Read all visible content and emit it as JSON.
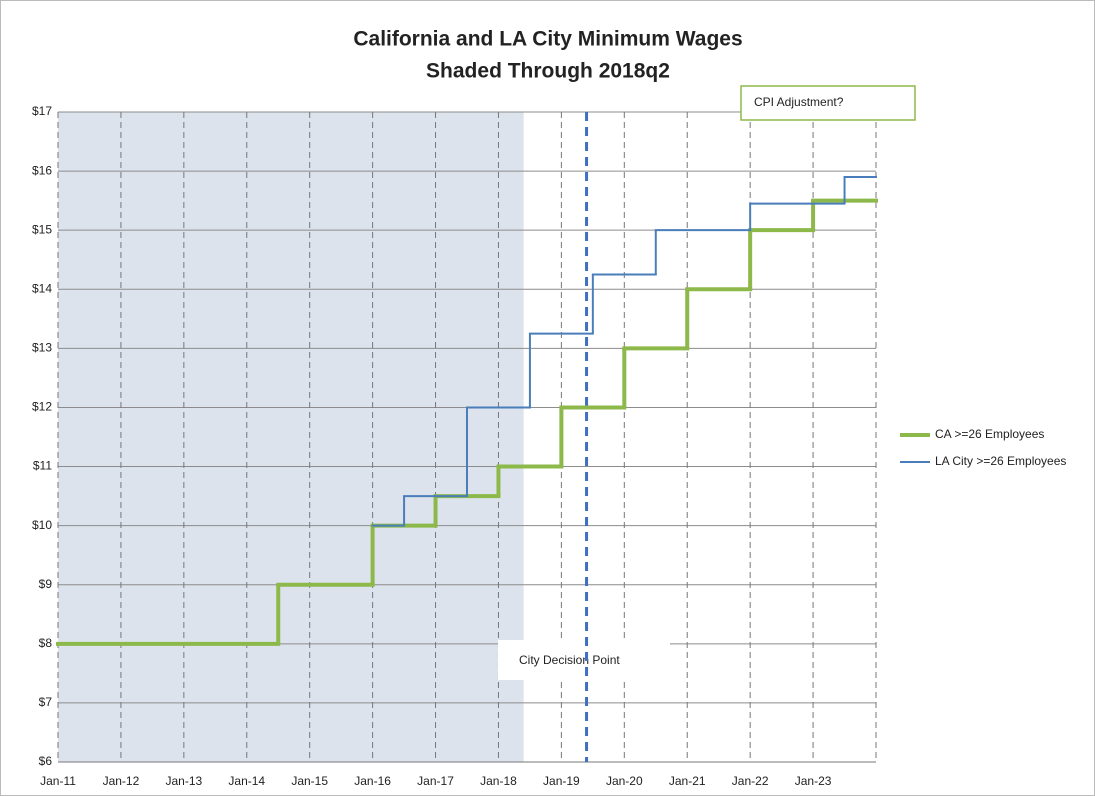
{
  "chart_data": {
    "type": "step",
    "title": "California and LA City Minimum Wages",
    "subtitle": "Shaded Through 2018q2",
    "xlim": [
      2011,
      2024
    ],
    "xticks": [
      {
        "value": 2011,
        "label": "Jan-11"
      },
      {
        "value": 2012,
        "label": "Jan-12"
      },
      {
        "value": 2013,
        "label": "Jan-13"
      },
      {
        "value": 2014,
        "label": "Jan-14"
      },
      {
        "value": 2015,
        "label": "Jan-15"
      },
      {
        "value": 2016,
        "label": "Jan-16"
      },
      {
        "value": 2017,
        "label": "Jan-17"
      },
      {
        "value": 2018,
        "label": "Jan-18"
      },
      {
        "value": 2019,
        "label": "Jan-19"
      },
      {
        "value": 2020,
        "label": "Jan-20"
      },
      {
        "value": 2021,
        "label": "Jan-21"
      },
      {
        "value": 2022,
        "label": "Jan-22"
      },
      {
        "value": 2023,
        "label": "Jan-23"
      }
    ],
    "ylim": [
      6,
      17
    ],
    "yticks": [
      {
        "value": 6,
        "label": "$6"
      },
      {
        "value": 7,
        "label": "$7"
      },
      {
        "value": 8,
        "label": "$8"
      },
      {
        "value": 9,
        "label": "$9"
      },
      {
        "value": 10,
        "label": "$10"
      },
      {
        "value": 11,
        "label": "$11"
      },
      {
        "value": 12,
        "label": "$12"
      },
      {
        "value": 13,
        "label": "$13"
      },
      {
        "value": 14,
        "label": "$14"
      },
      {
        "value": 15,
        "label": "$15"
      },
      {
        "value": 16,
        "label": "$16"
      },
      {
        "value": 17,
        "label": "$17"
      }
    ],
    "grid": true,
    "legend": "right",
    "shade_xlim": [
      2011,
      2018.4
    ],
    "shade_color": "#dce3ed",
    "decision_x": 2019.4,
    "decision_color": "#3f6fc0",
    "annotations": [
      "City Decision Point",
      "CPI Adjustment?"
    ],
    "series": [
      {
        "name": "CA >=26 Employees",
        "color": "#8db84a",
        "width": 4,
        "x": [
          2011,
          2014.5,
          2016,
          2017,
          2018,
          2019,
          2020,
          2021,
          2022,
          2023,
          2024
        ],
        "values": [
          8,
          9,
          10,
          10.5,
          11,
          12,
          13,
          14,
          15,
          15.5,
          15.5
        ]
      },
      {
        "name": "LA City >=26 Employees",
        "color": "#4a7ebb",
        "width": 2,
        "x": [
          2016,
          2016.5,
          2017.5,
          2018.5,
          2019.5,
          2020.5,
          2022,
          2023.5,
          2024
        ],
        "values": [
          10,
          10.5,
          12,
          13.25,
          14.25,
          15,
          15.45,
          15.9,
          15.9
        ]
      }
    ]
  }
}
